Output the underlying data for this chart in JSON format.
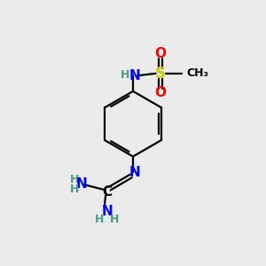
{
  "background_color": "#ebebeb",
  "atom_colors": {
    "C": "#000000",
    "H": "#4a9a8a",
    "N": "#0000ee",
    "O": "#ff0000",
    "S": "#cccc00"
  },
  "bond_color": "#000000",
  "bond_width": 1.6,
  "font_size_atoms": 11,
  "font_size_H": 9,
  "font_size_CH3": 9
}
